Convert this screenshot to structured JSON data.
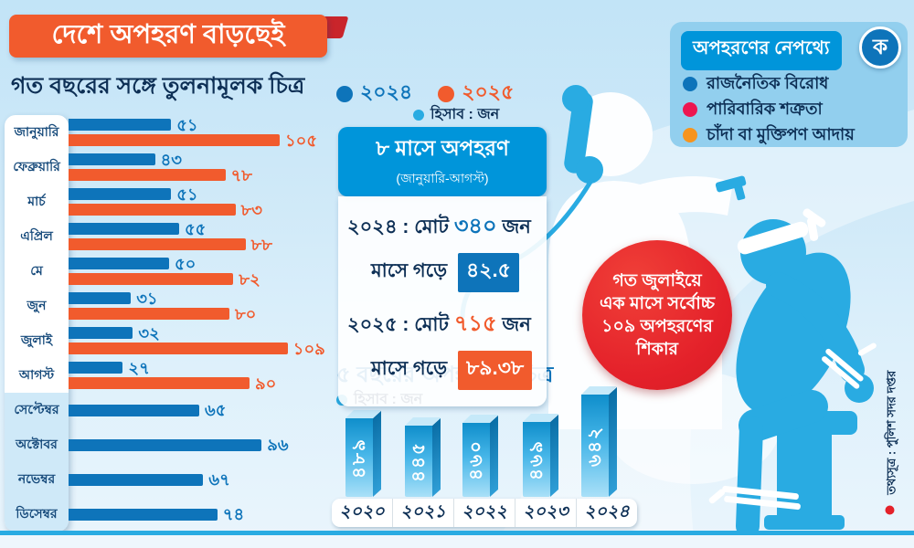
{
  "title": "দেশে অপহরণ বাড়ছেই",
  "subtitle": "গত বছরের সঙ্গে তুলনামূলক চিত্র",
  "colors": {
    "accent_blue": "#0e74ba",
    "accent_orange": "#f15b2d",
    "light_blue": "#29abe2",
    "header_blue": "#0095da",
    "navy": "#0d2f55",
    "red": "#e4212a",
    "crimson": "#ed1650",
    "amber": "#f7941d"
  },
  "chart_data": [
    {
      "type": "bar",
      "orientation": "horizontal",
      "title": "গত বছরের সঙ্গে তুলনামূলক চিত্র",
      "unit_note": "হিসাব : জন",
      "categories": [
        "জানুয়ারি",
        "ফেব্রুয়ারি",
        "মার্চ",
        "এপ্রিল",
        "মে",
        "জুন",
        "জুলাই",
        "আগস্ট",
        "সেপ্টেম্বর",
        "অক্টোবর",
        "নভেম্বর",
        "ডিসেম্বর"
      ],
      "series": [
        {
          "name": "২০২৪",
          "color": "#0e74ba",
          "values": [
            51,
            43,
            51,
            55,
            50,
            31,
            32,
            27,
            65,
            96,
            67,
            74
          ],
          "labels_bn": [
            "৫১",
            "৪৩",
            "৫১",
            "৫৫",
            "৫০",
            "৩১",
            "৩২",
            "২৭",
            "৬৫",
            "৯৬",
            "৬৭",
            "৭৪"
          ]
        },
        {
          "name": "২০২৫",
          "color": "#f15b2d",
          "values": [
            105,
            78,
            83,
            88,
            82,
            80,
            109,
            90,
            null,
            null,
            null,
            null
          ],
          "labels_bn": [
            "১০৫",
            "৭৮",
            "৮৩",
            "৮৮",
            "৮২",
            "৮০",
            "১০৯",
            "৯০",
            null,
            null,
            null,
            null
          ]
        }
      ],
      "xlim": [
        0,
        110
      ],
      "grid": false,
      "legend_position": "top"
    },
    {
      "type": "bar",
      "orientation": "vertical",
      "title": "৫ বছরের অপহরণের চিত্র",
      "unit_note": "হিসাব : জন",
      "categories": [
        "২০২০",
        "২০২১",
        "২০২২",
        "২০২৩",
        "২০২৪"
      ],
      "values": [
        489,
        445,
        460,
        469,
        642
      ],
      "labels_bn": [
        "৪৮৯",
        "৪৪৫",
        "৪৬০",
        "৪৬৯",
        "৬৪২"
      ],
      "ylim": [
        0,
        660
      ],
      "grid": false
    }
  ],
  "stats_box": {
    "title": "৮ মাসে অপহরণ",
    "subtitle": "(জানুয়ারি-আগস্ট)",
    "r2024": {
      "prefix": "২০২৪ : মোট",
      "value": "৩৪০",
      "suffix": "জন",
      "avg_label": "মাসে গড়ে",
      "avg": "৪২.৫"
    },
    "r2025": {
      "prefix": "২০২৫ : মোট",
      "value": "৭১৫",
      "suffix": "জন",
      "avg_label": "মাসে গড়ে",
      "avg": "৮৯.৩৮"
    }
  },
  "highlight_circle": {
    "lines": [
      "গত জুলাইয়ে",
      "এক মাসে সর্বোচ্চ",
      "১০৯ অপহরণের",
      "শিকার"
    ]
  },
  "reasons_box": {
    "title": "অপহরণের নেপথ্যে",
    "logo_letter": "ক",
    "items": [
      {
        "label": "রাজনৈতিক বিরোধ",
        "color": "#0e74ba"
      },
      {
        "label": "পারিবারিক শত্রুতা",
        "color": "#ed1650"
      },
      {
        "label": "চাঁদা বা মুক্তিপণ আদায়",
        "color": "#f7941d"
      }
    ]
  },
  "source": {
    "label": "তথ্যসূত্র : পুলিশ সদর দপ্তর"
  }
}
